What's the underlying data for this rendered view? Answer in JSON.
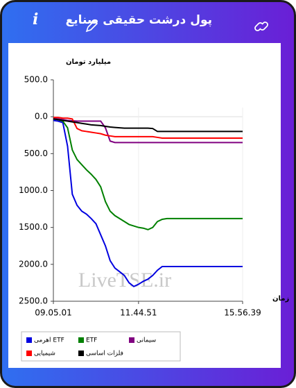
{
  "header": {
    "title": "پول درشت حقیقی صنایع",
    "info": "i"
  },
  "chart_data": {
    "type": "line",
    "ylabel": "میلیارد تومان",
    "xlabel": "زمان",
    "watermark": "LiveTSE.ir",
    "categories": [
      "09.05.01",
      null,
      null,
      null,
      null,
      null,
      null,
      null,
      null,
      null,
      null,
      null,
      null,
      null,
      null,
      null,
      null,
      null,
      "11.44.51",
      null,
      null,
      null,
      null,
      null,
      null,
      null,
      null,
      null,
      null,
      null,
      null,
      null,
      null,
      null,
      null,
      null,
      null,
      null,
      null,
      null,
      "15.56.39"
    ],
    "ylim": [
      -2500,
      500
    ],
    "yticks": [
      {
        "value": 500,
        "label": "500.0"
      },
      {
        "value": 0,
        "label": "0.0"
      },
      {
        "value": -500,
        "label": "500.0"
      },
      {
        "value": -1000,
        "label": "1000.0"
      },
      {
        "value": -1500,
        "label": "1500.0"
      },
      {
        "value": -2000,
        "label": "2000.0"
      },
      {
        "value": -2500,
        "label": "2500.0"
      }
    ],
    "series": [
      {
        "name": "اهرمی ETF",
        "color": "#0000e0",
        "values": [
          -50,
          -60,
          -80,
          -400,
          -1050,
          -1200,
          -1280,
          -1320,
          -1380,
          -1450,
          -1600,
          -1750,
          -1950,
          -2050,
          -2100,
          -2150,
          -2250,
          -2300,
          -2270,
          -2230,
          -2200,
          -2150,
          -2080,
          -2030,
          -2030,
          -2030,
          -2030,
          -2030,
          -2030,
          -2030,
          -2030,
          -2030,
          -2030,
          -2030,
          -2030,
          -2030,
          -2030,
          -2030,
          -2030,
          -2030,
          -2030
        ]
      },
      {
        "name": "ETF",
        "color": "#008000",
        "values": [
          -30,
          -40,
          -60,
          -150,
          -450,
          -580,
          -650,
          -720,
          -780,
          -850,
          -950,
          -1150,
          -1280,
          -1340,
          -1380,
          -1420,
          -1460,
          -1480,
          -1500,
          -1510,
          -1530,
          -1500,
          -1420,
          -1390,
          -1380,
          -1380,
          -1380,
          -1380,
          -1380,
          -1380,
          -1380,
          -1380,
          -1380,
          -1380,
          -1380,
          -1380,
          -1380,
          -1380,
          -1380,
          -1380,
          -1380
        ]
      },
      {
        "name": "سیمانی",
        "color": "#800080",
        "values": [
          -20,
          -30,
          -40,
          -50,
          -55,
          -60,
          -60,
          -60,
          -60,
          -60,
          -60,
          -150,
          -330,
          -350,
          -350,
          -350,
          -350,
          -350,
          -350,
          -350,
          -350,
          -350,
          -350,
          -350,
          -350,
          -350,
          -350,
          -350,
          -350,
          -350,
          -350,
          -350,
          -350,
          -350,
          -350,
          -350,
          -350,
          -350,
          -350,
          -350,
          -350
        ]
      },
      {
        "name": "شیمیایی",
        "color": "#ff0000",
        "values": [
          -10,
          -10,
          -20,
          -20,
          -30,
          -160,
          -190,
          -200,
          -210,
          -220,
          -230,
          -250,
          -260,
          -270,
          -270,
          -270,
          -270,
          -270,
          -270,
          -270,
          -270,
          -270,
          -280,
          -290,
          -290,
          -290,
          -290,
          -290,
          -290,
          -290,
          -290,
          -290,
          -290,
          -290,
          -290,
          -290,
          -290,
          -290,
          -290,
          -290,
          -290
        ]
      },
      {
        "name": "فلزات اساسی",
        "color": "#000000",
        "values": [
          -30,
          -40,
          -50,
          -60,
          -70,
          -80,
          -90,
          -100,
          -110,
          -115,
          -120,
          -130,
          -140,
          -145,
          -150,
          -155,
          -155,
          -155,
          -155,
          -155,
          -155,
          -160,
          -200,
          -200,
          -200,
          -200,
          -200,
          -200,
          -200,
          -200,
          -200,
          -200,
          -200,
          -200,
          -200,
          -200,
          -200,
          -200,
          -200,
          -200,
          -200
        ]
      }
    ]
  }
}
